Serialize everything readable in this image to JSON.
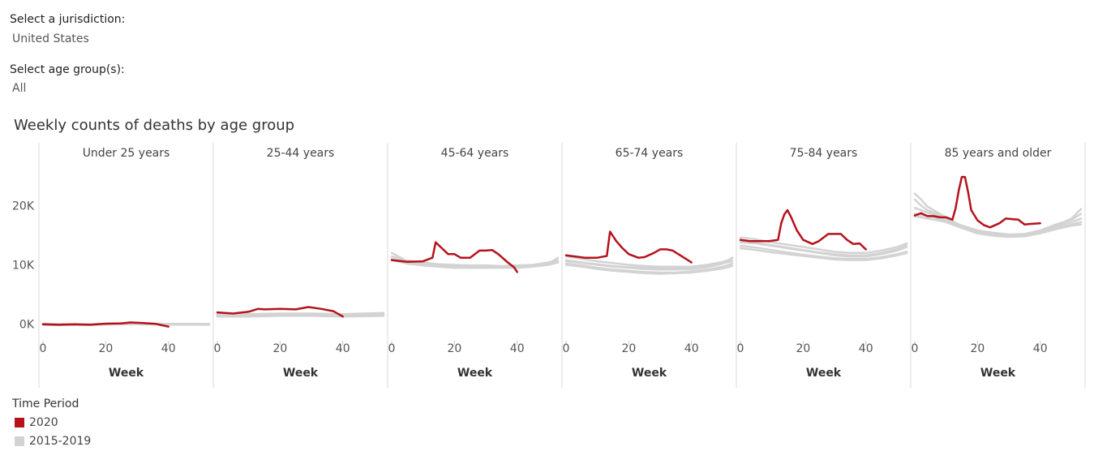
{
  "filters": {
    "jurisdiction_label": "Select a jurisdiction:",
    "jurisdiction_value": "United States",
    "age_label": "Select age group(s):",
    "age_value": "All"
  },
  "legend": {
    "title": "Time Period",
    "items": [
      {
        "label": "2020",
        "color": "#b5121b"
      },
      {
        "label": "2015-2019",
        "color": "#d3d3d3"
      }
    ]
  },
  "chart_data": {
    "type": "line",
    "title": "Weekly counts of deaths by age group",
    "xlabel": "Week",
    "ylabel": "",
    "xlim": [
      0,
      53
    ],
    "ylim": [
      -2500,
      27000
    ],
    "x_ticks": [
      0,
      20,
      40
    ],
    "y_ticks": [
      {
        "value": 0,
        "label": "0K"
      },
      {
        "value": 10000,
        "label": "10K"
      },
      {
        "value": 20000,
        "label": "20K"
      }
    ],
    "grid": false,
    "colors": {
      "2020": "#b5121b",
      "2015-2019": "#d3d3d3"
    },
    "panels": [
      {
        "name": "Under 25 years",
        "series_2020": {
          "x": [
            0,
            5,
            10,
            15,
            20,
            25,
            28,
            32,
            36,
            40
          ],
          "y": [
            0,
            -100,
            0,
            -100,
            100,
            150,
            300,
            200,
            50,
            -400
          ]
        },
        "series_2015_2019": [
          {
            "x": [
              0,
              10,
              20,
              30,
              40,
              53
            ],
            "y": [
              100,
              0,
              50,
              150,
              50,
              50
            ]
          },
          {
            "x": [
              0,
              10,
              20,
              30,
              40,
              53
            ],
            "y": [
              -100,
              -150,
              -50,
              0,
              -50,
              -100
            ]
          },
          {
            "x": [
              0,
              10,
              20,
              30,
              40,
              53
            ],
            "y": [
              0,
              -50,
              0,
              100,
              0,
              0
            ]
          }
        ]
      },
      {
        "name": "25-44 years",
        "series_2020": {
          "x": [
            0,
            5,
            10,
            13,
            15,
            20,
            25,
            29,
            33,
            37,
            40
          ],
          "y": [
            2000,
            1800,
            2100,
            2600,
            2500,
            2600,
            2500,
            2900,
            2600,
            2200,
            1300
          ]
        },
        "series_2015_2019": [
          {
            "x": [
              0,
              10,
              20,
              30,
              40,
              53
            ],
            "y": [
              1600,
              1600,
              1700,
              1700,
              1600,
              1800
            ]
          },
          {
            "x": [
              0,
              10,
              20,
              30,
              40,
              53
            ],
            "y": [
              1400,
              1400,
              1500,
              1500,
              1400,
              1500
            ]
          },
          {
            "x": [
              0,
              10,
              20,
              30,
              40,
              53
            ],
            "y": [
              1500,
              1500,
              1550,
              1600,
              1500,
              1650
            ]
          },
          {
            "x": [
              0,
              10,
              20,
              30,
              40,
              53
            ],
            "y": [
              1300,
              1300,
              1400,
              1400,
              1300,
              1400
            ]
          },
          {
            "x": [
              0,
              10,
              20,
              30,
              40,
              53
            ],
            "y": [
              1700,
              1700,
              1800,
              1800,
              1700,
              1900
            ]
          }
        ]
      },
      {
        "name": "45-64 years",
        "series_2020": {
          "x": [
            0,
            5,
            10,
            13,
            14,
            16,
            18,
            20,
            22,
            25,
            28,
            30,
            32,
            34,
            37,
            39,
            40
          ],
          "y": [
            10800,
            10500,
            10600,
            11200,
            13800,
            12800,
            11800,
            11800,
            11200,
            11200,
            12400,
            12400,
            12500,
            11800,
            10400,
            9600,
            8800
          ]
        },
        "series_2015_2019": [
          {
            "x": [
              0,
              5,
              10,
              15,
              20,
              25,
              30,
              35,
              40,
              45,
              50,
              53
            ],
            "y": [
              12000,
              10600,
              10200,
              9900,
              9800,
              9800,
              9700,
              9700,
              9700,
              9800,
              10100,
              10500
            ]
          },
          {
            "x": [
              0,
              5,
              10,
              15,
              20,
              25,
              30,
              35,
              40,
              45,
              50,
              53
            ],
            "y": [
              11400,
              10700,
              10400,
              10100,
              10000,
              9900,
              9900,
              9800,
              9900,
              10000,
              10400,
              10800
            ]
          },
          {
            "x": [
              0,
              5,
              10,
              15,
              20,
              25,
              30,
              35,
              40,
              45,
              50,
              53
            ],
            "y": [
              11000,
              10400,
              10000,
              9800,
              9600,
              9600,
              9600,
              9600,
              9600,
              9800,
              10200,
              11200
            ]
          },
          {
            "x": [
              0,
              5,
              10,
              15,
              20,
              25,
              30,
              35,
              40,
              45,
              50,
              53
            ],
            "y": [
              10800,
              10200,
              9900,
              9700,
              9500,
              9500,
              9500,
              9500,
              9500,
              9700,
              10000,
              10400
            ]
          }
        ]
      },
      {
        "name": "65-74 years",
        "series_2020": {
          "x": [
            0,
            3,
            6,
            10,
            13,
            14,
            16,
            18,
            20,
            23,
            25,
            28,
            30,
            32,
            34,
            37,
            40
          ],
          "y": [
            11600,
            11400,
            11200,
            11200,
            11500,
            15600,
            14000,
            12800,
            11800,
            11200,
            11300,
            12000,
            12600,
            12600,
            12400,
            11400,
            10400
          ]
        },
        "series_2015_2019": [
          {
            "x": [
              0,
              5,
              10,
              15,
              20,
              25,
              30,
              35,
              40,
              45,
              50,
              53
            ],
            "y": [
              11400,
              11000,
              10600,
              10300,
              10000,
              9800,
              9700,
              9700,
              9700,
              10000,
              10500,
              11000
            ]
          },
          {
            "x": [
              0,
              5,
              10,
              15,
              20,
              25,
              30,
              35,
              40,
              45,
              50,
              53
            ],
            "y": [
              10600,
              10300,
              10000,
              9700,
              9500,
              9300,
              9200,
              9200,
              9300,
              9600,
              10200,
              11200
            ]
          },
          {
            "x": [
              0,
              5,
              10,
              15,
              20,
              25,
              30,
              35,
              40,
              45,
              50,
              53
            ],
            "y": [
              10200,
              9900,
              9500,
              9200,
              9000,
              8800,
              8700,
              8700,
              8900,
              9200,
              9700,
              10200
            ]
          },
          {
            "x": [
              0,
              5,
              10,
              15,
              20,
              25,
              30,
              35,
              40,
              45,
              50,
              53
            ],
            "y": [
              10000,
              9700,
              9300,
              9000,
              8800,
              8600,
              8500,
              8600,
              8700,
              9000,
              9400,
              9800
            ]
          },
          {
            "x": [
              0,
              5,
              10,
              15,
              20,
              25,
              30,
              35,
              40,
              45,
              50,
              53
            ],
            "y": [
              10800,
              10400,
              10100,
              9800,
              9600,
              9500,
              9400,
              9400,
              9500,
              9800,
              10300,
              10600
            ]
          }
        ]
      },
      {
        "name": "75-84 years",
        "series_2020": {
          "x": [
            0,
            3,
            6,
            9,
            12,
            13,
            14,
            15,
            16,
            18,
            20,
            23,
            25,
            28,
            30,
            32,
            34,
            36,
            38,
            40
          ],
          "y": [
            14200,
            14000,
            14000,
            14000,
            14200,
            17000,
            18500,
            19200,
            18200,
            15800,
            14200,
            13500,
            14000,
            15200,
            15200,
            15200,
            14200,
            13500,
            13600,
            12600
          ]
        },
        "series_2015_2019": [
          {
            "x": [
              0,
              5,
              10,
              15,
              20,
              25,
              30,
              35,
              40,
              45,
              50,
              53
            ],
            "y": [
              14600,
              14300,
              13800,
              13400,
              13000,
              12600,
              12200,
              12000,
              12000,
              12400,
              13000,
              13600
            ]
          },
          {
            "x": [
              0,
              5,
              10,
              15,
              20,
              25,
              30,
              35,
              40,
              45,
              50,
              53
            ],
            "y": [
              13800,
              13600,
              13200,
              12800,
              12400,
              12000,
              11600,
              11400,
              11400,
              11800,
              12400,
              13000
            ]
          },
          {
            "x": [
              0,
              5,
              10,
              15,
              20,
              25,
              30,
              35,
              40,
              45,
              50,
              53
            ],
            "y": [
              13200,
              12900,
              12500,
              12100,
              11700,
              11400,
              11100,
              11000,
              11000,
              11300,
              11800,
              12200
            ]
          },
          {
            "x": [
              0,
              5,
              10,
              15,
              20,
              25,
              30,
              35,
              40,
              45,
              50,
              53
            ],
            "y": [
              12800,
              12500,
              12100,
              11800,
              11500,
              11200,
              10900,
              10800,
              10800,
              11100,
              11600,
              12000
            ]
          },
          {
            "x": [
              0,
              5,
              10,
              15,
              20,
              25,
              30,
              35,
              40,
              45,
              50,
              53
            ],
            "y": [
              14000,
              13700,
              13300,
              12900,
              12500,
              12100,
              11800,
              11600,
              11600,
              12000,
              12600,
              13400
            ]
          }
        ]
      },
      {
        "name": "85 years and older",
        "series_2020": {
          "x": [
            0,
            2,
            4,
            6,
            8,
            10,
            12,
            13,
            14,
            15,
            16,
            17,
            18,
            20,
            22,
            24,
            27,
            29,
            31,
            33,
            35,
            37,
            40
          ],
          "y": [
            18300,
            18700,
            18200,
            18200,
            18000,
            18000,
            17600,
            19500,
            22500,
            24800,
            24800,
            22200,
            19200,
            17500,
            16700,
            16300,
            17000,
            17800,
            17700,
            17600,
            16800,
            16900,
            17000
          ]
        },
        "series_2015_2019": [
          {
            "x": [
              0,
              2,
              4,
              6,
              10,
              15,
              20,
              25,
              30,
              35,
              40,
              45,
              50,
              53
            ],
            "y": [
              22000,
              21000,
              19800,
              19200,
              18000,
              16500,
              15600,
              15200,
              15000,
              15100,
              15600,
              16600,
              17800,
              19400
            ]
          },
          {
            "x": [
              0,
              2,
              4,
              6,
              10,
              15,
              20,
              25,
              30,
              35,
              40,
              45,
              50,
              53
            ],
            "y": [
              21000,
              20000,
              19200,
              18800,
              17800,
              16600,
              15800,
              15400,
              15100,
              15200,
              15800,
              16800,
              17600,
              18600
            ]
          },
          {
            "x": [
              0,
              2,
              4,
              6,
              10,
              15,
              20,
              25,
              30,
              35,
              40,
              45,
              50,
              53
            ],
            "y": [
              19600,
              19200,
              18800,
              18500,
              17600,
              16600,
              15800,
              15300,
              15000,
              15100,
              15600,
              16500,
              17200,
              17800
            ]
          },
          {
            "x": [
              0,
              2,
              4,
              6,
              10,
              15,
              20,
              25,
              30,
              35,
              40,
              45,
              50,
              53
            ],
            "y": [
              18600,
              18400,
              18200,
              18000,
              17400,
              16400,
              15500,
              15000,
              14800,
              14900,
              15400,
              16200,
              16800,
              17200
            ]
          },
          {
            "x": [
              0,
              2,
              4,
              6,
              10,
              15,
              20,
              25,
              30,
              35,
              40,
              45,
              50,
              53
            ],
            "y": [
              18200,
              18000,
              17800,
              17600,
              17200,
              16200,
              15300,
              14900,
              14700,
              14800,
              15300,
              16000,
              16600,
              16800
            ]
          }
        ]
      }
    ]
  }
}
